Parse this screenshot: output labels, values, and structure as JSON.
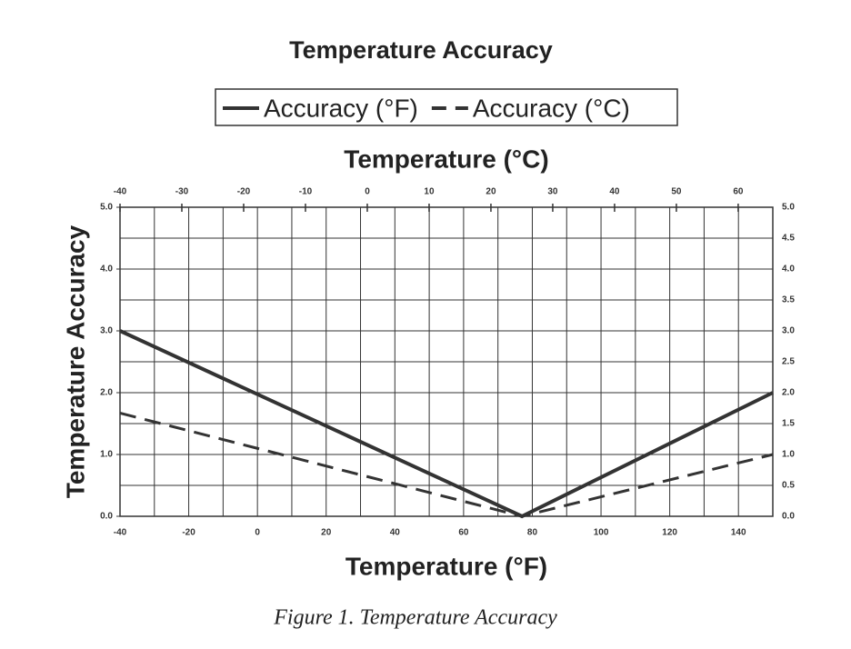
{
  "chart_data": {
    "type": "line",
    "title": "Temperature Accuracy",
    "x_label": "Temperature (°F)",
    "x2_label": "Temperature (°C)",
    "y_label": "Temperature Accuracy",
    "xlim": [
      -40,
      150
    ],
    "xticks": [
      -40,
      -20,
      0,
      20,
      40,
      60,
      80,
      100,
      120,
      140
    ],
    "x2lim": [
      -40,
      65.6
    ],
    "x2ticks": [
      -40,
      -30,
      -20,
      -10,
      0,
      10,
      20,
      30,
      40,
      50,
      60
    ],
    "ylim": [
      0,
      5
    ],
    "yticks": [
      {
        "value": 0,
        "label": "0.0"
      },
      {
        "value": 1,
        "label": "1.0"
      },
      {
        "value": 2,
        "label": "2.0"
      },
      {
        "value": 3,
        "label": "3.0"
      },
      {
        "value": 4,
        "label": "4.0"
      },
      {
        "value": 5,
        "label": "5.0"
      }
    ],
    "y2lim": [
      0,
      5
    ],
    "y2ticks": [
      {
        "value": 0,
        "label": "0.0"
      },
      {
        "value": 0.5,
        "label": "0.5"
      },
      {
        "value": 1,
        "label": "1.0"
      },
      {
        "value": 1.5,
        "label": "1.5"
      },
      {
        "value": 2,
        "label": "2.0"
      },
      {
        "value": 2.5,
        "label": "2.5"
      },
      {
        "value": 3,
        "label": "3.0"
      },
      {
        "value": 3.5,
        "label": "3.5"
      },
      {
        "value": 4,
        "label": "4.0"
      },
      {
        "value": 4.5,
        "label": "4.5"
      },
      {
        "value": 5,
        "label": "5.0"
      }
    ],
    "grid": true,
    "series": [
      {
        "name": "Accuracy (°F)",
        "color": "#333333",
        "style": "solid",
        "x": [
          -40,
          77,
          150
        ],
        "values": [
          3.0,
          0,
          2.0
        ]
      },
      {
        "name": "Accuracy (°C)",
        "color": "#333333",
        "style": "dashed",
        "axis": "y2",
        "x_axis": "x2",
        "x": [
          -40,
          25,
          65.6
        ],
        "values": [
          1.67,
          0,
          1.0
        ]
      }
    ]
  },
  "caption": "Figure 1. Temperature Accuracy"
}
